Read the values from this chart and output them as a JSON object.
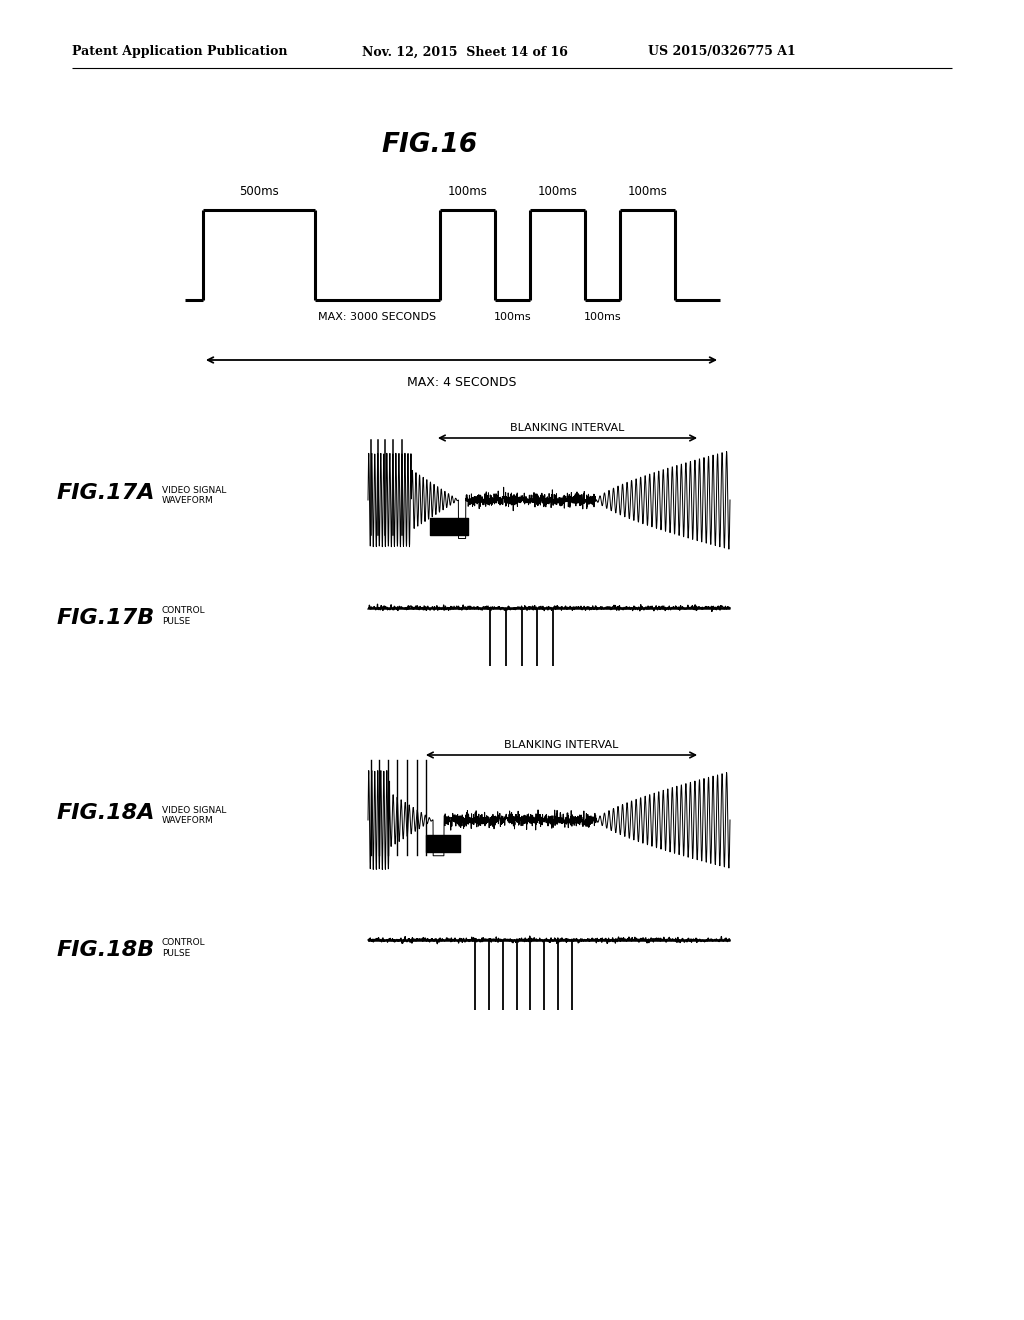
{
  "bg_color": "#ffffff",
  "text_color": "#000000",
  "header_left": "Patent Application Publication",
  "header_mid": "Nov. 12, 2015  Sheet 14 of 16",
  "header_right": "US 2015/0326775 A1",
  "fig16_title": "FIG.16",
  "fig16_500ms": "500ms",
  "fig16_100ms_top": [
    "100ms",
    "100ms",
    "100ms"
  ],
  "fig16_100ms_bot": [
    "100ms",
    "100ms"
  ],
  "fig16_max3000": "MAX: 3000 SECONDS",
  "fig16_max4": "MAX: 4 SECONDS",
  "fig17a_label": "FIG.17A",
  "fig17a_sublabel": "VIDEO SIGNAL\nWAVEFORM",
  "fig17a_blanking": "BLANKING INTERVAL",
  "fig17b_label": "FIG.17B",
  "fig17b_sublabel": "CONTROL\nPULSE",
  "fig18a_label": "FIG.18A",
  "fig18a_sublabel": "VIDEO SIGNAL\nWAVEFORM",
  "fig18a_blanking": "BLANKING INTERVAL",
  "fig18b_label": "FIG.18B",
  "fig18b_sublabel": "CONTROL\nPULSE"
}
